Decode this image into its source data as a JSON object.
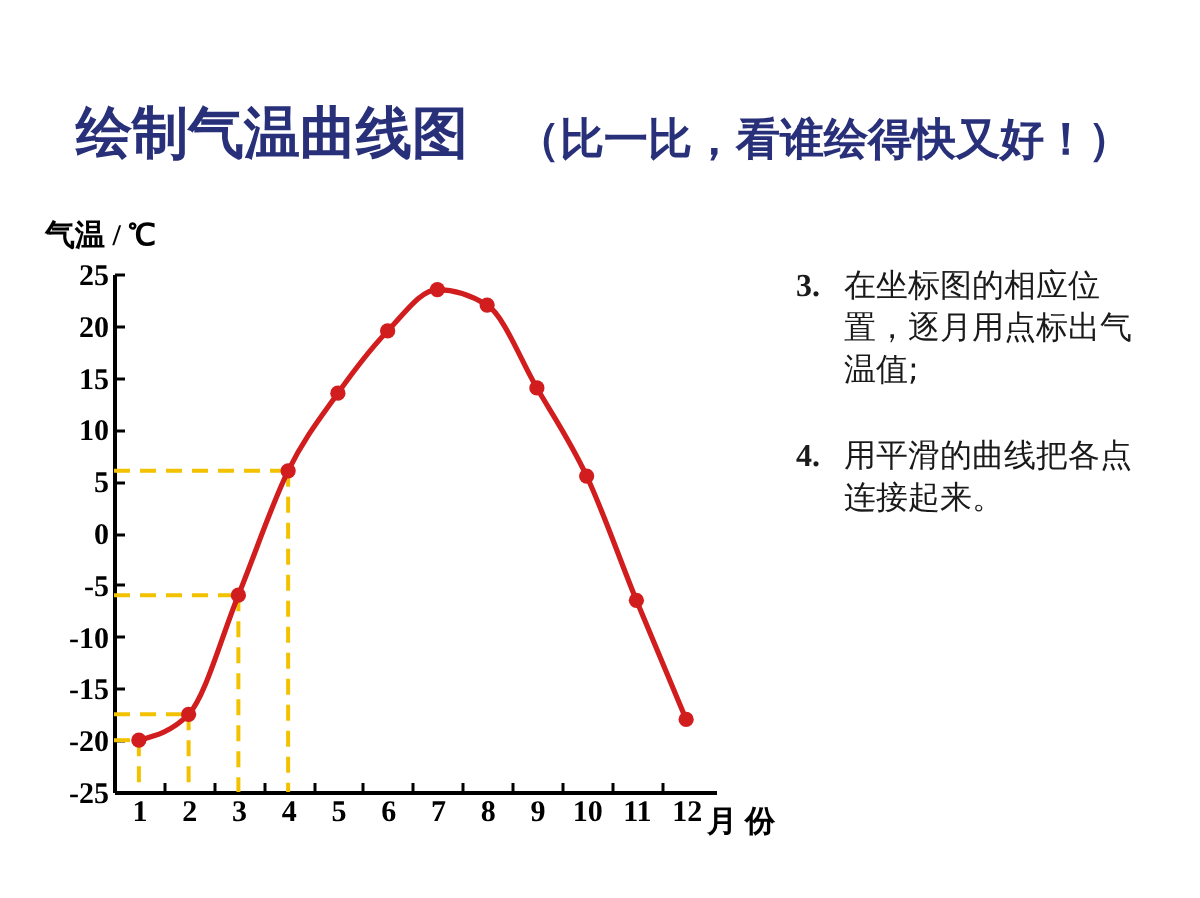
{
  "chart_data": {
    "type": "line",
    "title": "绘制气温曲线图",
    "subtitle": "（比一比，看谁绘得快又好！）",
    "xlabel": "月 份",
    "ylabel": "气温 / ℃",
    "x": [
      1,
      2,
      3,
      4,
      5,
      6,
      7,
      8,
      9,
      10,
      11,
      12
    ],
    "xlim": [
      0.5,
      12.6
    ],
    "xticks": [
      1,
      {
        "value": 1.5,
        "label": null
      },
      2,
      {
        "value": 2.5,
        "label": null
      },
      3,
      {
        "value": 3.5,
        "label": null
      },
      4,
      {
        "value": 4.5,
        "label": null
      },
      5,
      {
        "value": 5.5,
        "label": null
      },
      6,
      {
        "value": 6.5,
        "label": null
      },
      7,
      {
        "value": 7.5,
        "label": null
      },
      8,
      {
        "value": 8.5,
        "label": null
      },
      9,
      {
        "value": 9.5,
        "label": null
      },
      10,
      {
        "value": 10.5,
        "label": null
      },
      11,
      {
        "value": 11.5,
        "label": null
      },
      12
    ],
    "ylim": [
      -25,
      25
    ],
    "yticks": [
      -25,
      -20,
      -15,
      -10,
      -5,
      0,
      5,
      10,
      15,
      20,
      25
    ],
    "series": [
      {
        "color": "#f2c200",
        "line_style": "dashed",
        "marker": "none",
        "x": [
          0.5,
          1
        ],
        "values": [
          -20,
          -20
        ]
      },
      {
        "color": "#f2c200",
        "line_style": "dashed",
        "marker": "none",
        "x": [
          1,
          1
        ],
        "values": [
          -20,
          -25
        ]
      },
      {
        "color": "#f2c200",
        "line_style": "dashed",
        "marker": "none",
        "x": [
          0.5,
          2
        ],
        "values": [
          -17.5,
          -17.5
        ]
      },
      {
        "color": "#f2c200",
        "line_style": "dashed",
        "marker": "none",
        "x": [
          2,
          2
        ],
        "values": [
          -17.5,
          -25
        ]
      },
      {
        "color": "#f2c200",
        "line_style": "dashed",
        "marker": "none",
        "x": [
          0.5,
          3
        ],
        "values": [
          -6,
          -6
        ]
      },
      {
        "color": "#f2c200",
        "line_style": "dashed",
        "marker": "none",
        "x": [
          3,
          3
        ],
        "values": [
          -6,
          -25
        ]
      },
      {
        "color": "#f2c200",
        "line_style": "dashed",
        "marker": "none",
        "x": [
          0.5,
          4
        ],
        "values": [
          6,
          6
        ]
      },
      {
        "color": "#f2c200",
        "line_style": "dashed",
        "marker": "none",
        "x": [
          4,
          4
        ],
        "values": [
          6,
          -25
        ]
      },
      {
        "color": "#d11d1d",
        "line_style": "solid",
        "marker": "circle",
        "values": [
          -20,
          -17.5,
          -6,
          6,
          13.5,
          19.5,
          23.5,
          22,
          14,
          5.5,
          -6.5,
          -18
        ]
      }
    ],
    "annotations": [
      "3. 在坐标图的相应位置，逐月用点标出气温值;",
      "4. 用平滑的曲线把各点连接起来。"
    ]
  }
}
